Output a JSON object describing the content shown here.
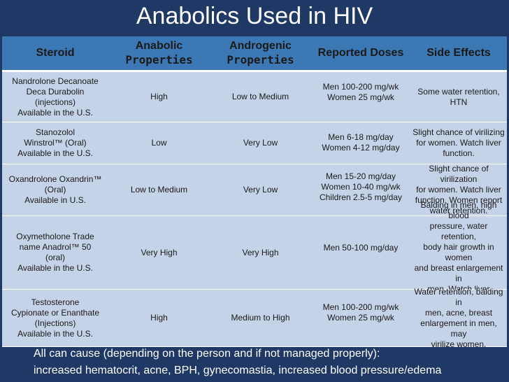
{
  "title": "Anabolics Used in HIV",
  "headers": {
    "steroid": "Steroid",
    "anabolic_1": "Anabolic",
    "anabolic_2": "Properties",
    "androgenic_1": "Androgenic",
    "androgenic_2": "Properties",
    "doses": "Reported Doses",
    "side_effects": "Side Effects"
  },
  "rows": [
    {
      "steroid": [
        "Nandrolone Decanoate",
        "Deca Durabolin",
        "(injections)",
        "Available in the U.S."
      ],
      "anabolic": "High",
      "androgenic": "Low to Medium",
      "doses": [
        "Men 100-200 mg/wk",
        "Women 25 mg/wk"
      ],
      "side_effects": [
        "Some water retention,",
        "HTN"
      ]
    },
    {
      "steroid": [
        "Stanozolol",
        "Winstrol™ (Oral)",
        "Available in the U.S."
      ],
      "anabolic": "Low",
      "androgenic": "Very Low",
      "doses": [
        "Men 6-18 mg/day",
        "Women 4-12 mg/day"
      ],
      "side_effects": [
        "Slight chance of virilizing",
        "for women. Watch liver",
        "function."
      ]
    },
    {
      "steroid": [
        "Oxandrolone Oxandrin™",
        "(Oral)",
        "Available in U.S."
      ],
      "anabolic": "Low to Medium",
      "androgenic": "Very Low",
      "doses": [
        "Men 15-20 mg/day",
        "Women 10-40 mg/wk",
        "Children 2.5-5 mg/day"
      ],
      "side_effects": [
        "Slight chance of virilization",
        "for women. Watch liver",
        "function. Women report",
        "water retention."
      ]
    },
    {
      "steroid": [
        "Oxymetholone Trade",
        "name Anadrol™ 50",
        "(oral)",
        "Available in the U.S."
      ],
      "anabolic": "Very High",
      "androgenic": "Very High",
      "doses": [
        "Men 50-100 mg/day"
      ],
      "side_effects": [
        "Balding in men, high blood",
        "pressure, water retention,",
        "body hair growth in women",
        "and breast enlargement in",
        "men. Watch liver function."
      ]
    },
    {
      "steroid": [
        "Testosterone",
        "Cypionate or Enanthate",
        "(Injections)",
        "Available in the U.S."
      ],
      "anabolic": "High",
      "androgenic": "Medium to High",
      "doses": [
        "Men 100-200 mg/wk",
        "Women 25 mg/wk"
      ],
      "side_effects": [
        "Water retention, balding in",
        "men, acne, breast",
        "enlargement in men, may",
        "virilize women."
      ]
    }
  ],
  "footnote": {
    "line1": "All can cause (depending on the person and if not managed properly):",
    "line2": "increased hematocrit, acne, BPH, gynecomastia, increased blood pressure/edema"
  }
}
